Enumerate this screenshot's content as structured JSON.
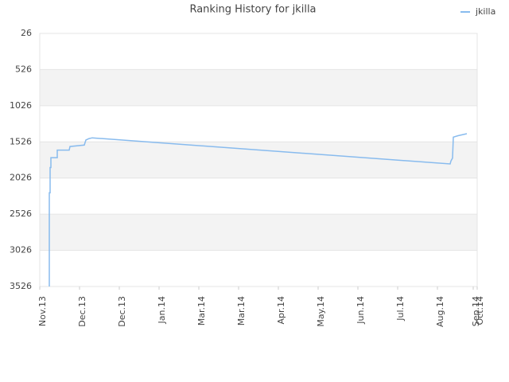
{
  "chart_data": {
    "type": "line",
    "title": "Ranking History for jkilla",
    "xlim": [
      0,
      11
    ],
    "xticks": [
      {
        "value": 0,
        "label": "Nov.13"
      },
      {
        "value": 1,
        "label": "Dec.13"
      },
      {
        "value": 2,
        "label": "Dec.13"
      },
      {
        "value": 3,
        "label": "Jan.14"
      },
      {
        "value": 4,
        "label": "Mar.14"
      },
      {
        "value": 5,
        "label": "Mar.14"
      },
      {
        "value": 6,
        "label": "Apr.14"
      },
      {
        "value": 7,
        "label": "May.14"
      },
      {
        "value": 8,
        "label": "Jun.14"
      },
      {
        "value": 9,
        "label": "Jul.14"
      },
      {
        "value": 10,
        "label": "Aug.14"
      },
      {
        "value": 10.9,
        "label": "Sep.14"
      },
      {
        "value": 11,
        "label": "Oct.14"
      }
    ],
    "ylim": [
      3526,
      26
    ],
    "yticks": [
      26,
      526,
      1026,
      1526,
      2026,
      2526,
      3026,
      3526
    ],
    "grid": true,
    "legend": "top-right",
    "series": [
      {
        "name": "jkilla",
        "color": "#88bbee",
        "x": [
          0.24,
          0.24,
          0.26,
          0.26,
          0.28,
          0.28,
          0.44,
          0.44,
          0.74,
          0.76,
          1.12,
          1.16,
          1.24,
          1.32,
          10.32,
          10.34,
          10.38,
          10.4,
          10.52,
          10.74
        ],
        "values": [
          3526,
          2230,
          2230,
          1880,
          1880,
          1745,
          1745,
          1640,
          1640,
          1590,
          1570,
          1500,
          1480,
          1470,
          1831,
          1790,
          1750,
          1460,
          1440,
          1413
        ]
      }
    ]
  }
}
